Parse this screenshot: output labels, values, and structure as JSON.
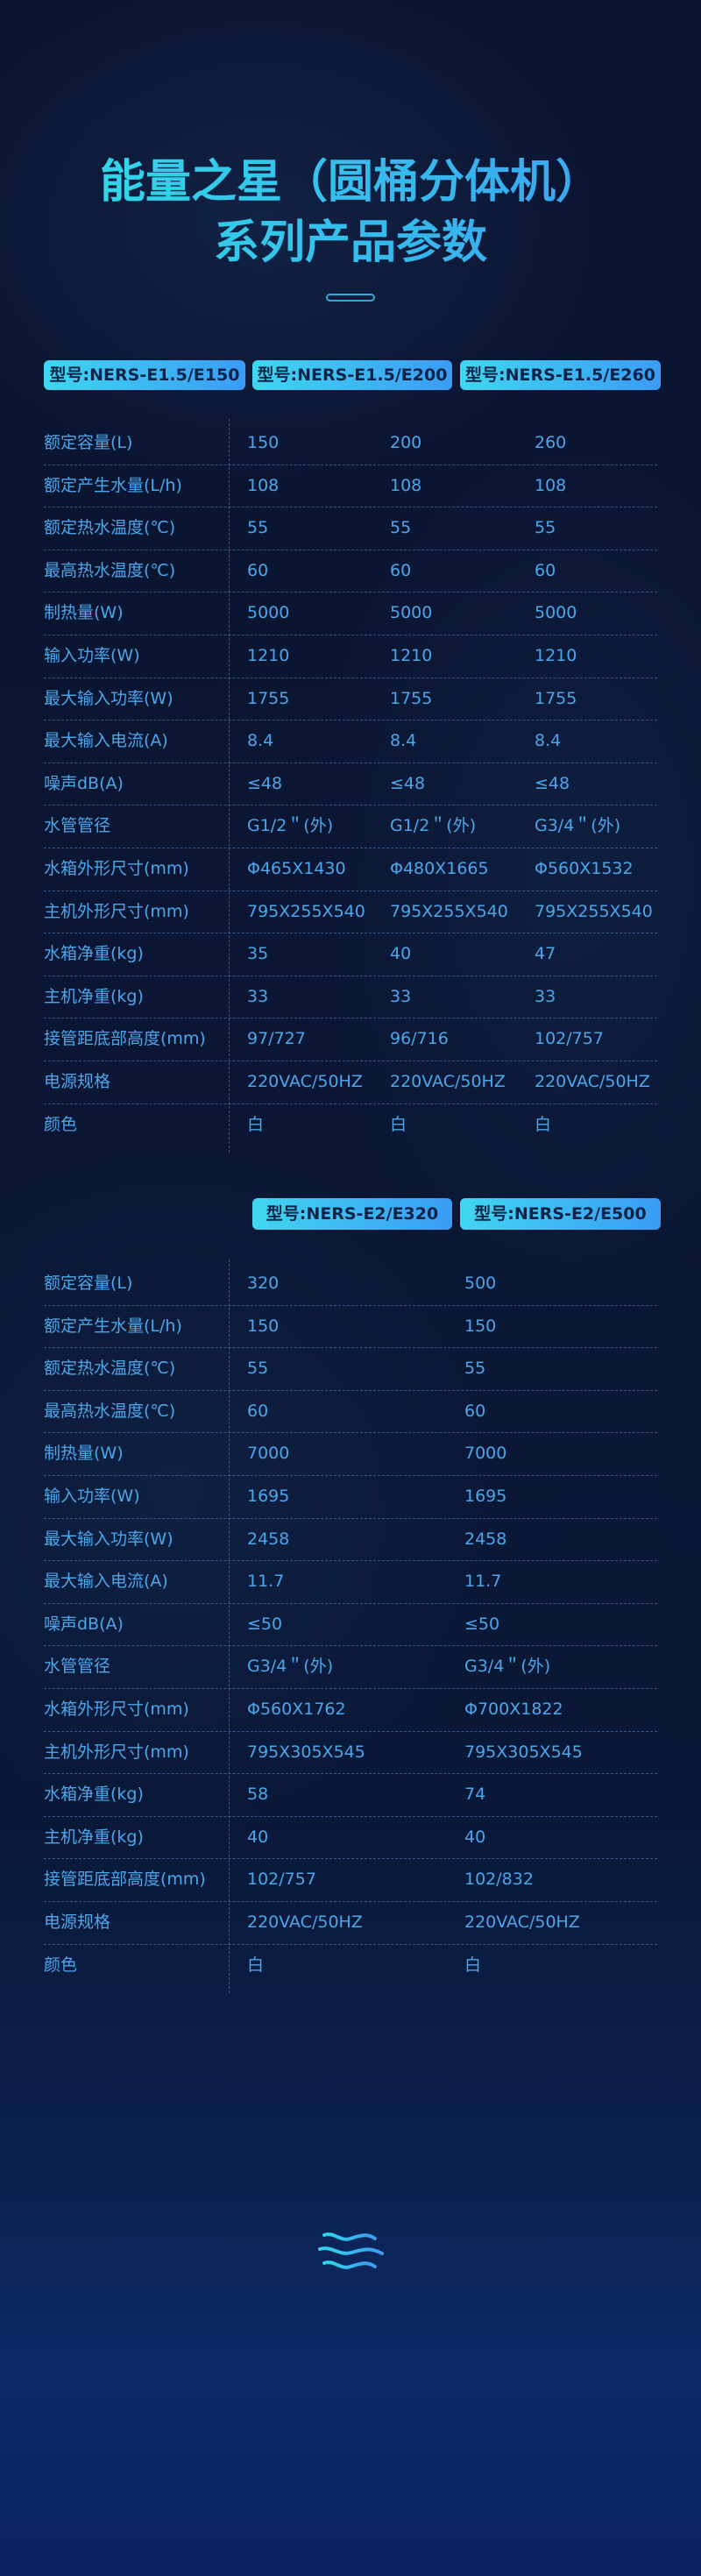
{
  "header": {
    "title_line1": "能量之星（圆桶分体机）",
    "title_line2": "系列产品参数"
  },
  "colors": {
    "accent_cyan": "#40d6f0",
    "accent_blue": "#3a9cf5",
    "text": "#4ba6ea",
    "background": "#0a1431"
  },
  "labels": [
    "额定容量(L)",
    "额定产生水量(L/h)",
    "额定热水温度(℃)",
    "最高热水温度(℃)",
    "制热量(W)",
    "输入功率(W)",
    "最大输入功率(W)",
    "最大输入电流(A)",
    "噪声dB(A)",
    "水管管径",
    "水箱外形尺寸(mm)",
    "主机外形尺寸(mm)",
    "水箱净重(kg)",
    "主机净重(kg)",
    "接管距底部高度(mm)",
    "电源规格",
    "颜色"
  ],
  "table1": {
    "models": [
      "型号:NERS-E1.5/E150",
      "型号:NERS-E1.5/E200",
      "型号:NERS-E1.5/E260"
    ],
    "columns": [
      [
        "150",
        "108",
        "55",
        "60",
        "5000",
        "1210",
        "1755",
        "8.4",
        "≤48",
        "G1/2＂(外)",
        "Φ465X1430",
        "795X255X540",
        "35",
        "33",
        "97/727",
        "220VAC/50HZ",
        "白"
      ],
      [
        "200",
        "108",
        "55",
        "60",
        "5000",
        "1210",
        "1755",
        "8.4",
        "≤48",
        "G1/2＂(外)",
        "Φ480X1665",
        "795X255X540",
        "40",
        "33",
        "96/716",
        "220VAC/50HZ",
        "白"
      ],
      [
        "260",
        "108",
        "55",
        "60",
        "5000",
        "1210",
        "1755",
        "8.4",
        "≤48",
        "G3/4＂(外)",
        "Φ560X1532",
        "795X255X540",
        "47",
        "33",
        "102/757",
        "220VAC/50HZ",
        "白"
      ]
    ]
  },
  "table2": {
    "models": [
      "型号:NERS-E2/E320",
      "型号:NERS-E2/E500"
    ],
    "columns": [
      [
        "320",
        "150",
        "55",
        "60",
        "7000",
        "1695",
        "2458",
        "11.7",
        "≤50",
        "G3/4＂(外)",
        "Φ560X1762",
        "795X305X545",
        "58",
        "40",
        "102/757",
        "220VAC/50HZ",
        "白"
      ],
      [
        "500",
        "150",
        "55",
        "60",
        "7000",
        "1695",
        "2458",
        "11.7",
        "≤50",
        "G3/4＂(外)",
        "Φ700X1822",
        "795X305X545",
        "74",
        "40",
        "102/832",
        "220VAC/50HZ",
        "白"
      ]
    ]
  },
  "footer": {
    "icon": "waves-icon"
  }
}
